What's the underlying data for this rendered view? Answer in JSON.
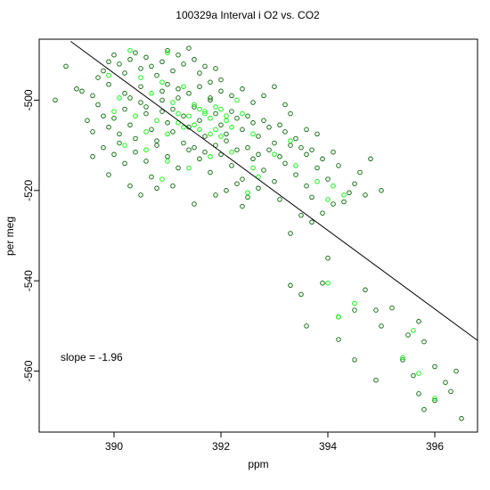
{
  "chart_data": {
    "type": "scatter",
    "title": "100329a   Interval i O2 vs. CO2",
    "xlabel": "ppm",
    "ylabel": "per meg",
    "xlim": [
      388.6,
      396.8
    ],
    "ylim": [
      -573.5,
      -486.5
    ],
    "x_ticks": [
      390,
      392,
      394,
      396
    ],
    "y_ticks": [
      -500,
      -520,
      -540,
      -560
    ],
    "x_tick_labels": [
      "390",
      "392",
      "394",
      "396"
    ],
    "y_tick_labels": [
      "-500",
      "-520",
      "-540",
      "-560"
    ],
    "grid": false,
    "legend": "none",
    "annotation": "slope =  -1.96",
    "fit_line": {
      "slope": -1.96,
      "points": [
        [
          389.19,
          -487.0
        ],
        [
          396.8,
          -553.2
        ]
      ]
    },
    "colors": {
      "series_dark": "#006400",
      "series_bright": "#00ee00",
      "fit_line": "#000000"
    },
    "series": [
      {
        "marker": "open-circle",
        "color": "#006400",
        "points": [
          [
            389.1,
            -492.5
          ],
          [
            388.9,
            -500.0
          ],
          [
            389.3,
            -497.5
          ],
          [
            389.4,
            -498.0
          ],
          [
            389.6,
            -499.0
          ],
          [
            389.7,
            -495.0
          ],
          [
            389.8,
            -493.5
          ],
          [
            389.9,
            -491.5
          ],
          [
            390.0,
            -490.0
          ],
          [
            390.1,
            -492.0
          ],
          [
            389.9,
            -496.5
          ],
          [
            390.2,
            -494.0
          ],
          [
            390.3,
            -491.0
          ],
          [
            390.4,
            -489.5
          ],
          [
            390.5,
            -493.0
          ],
          [
            390.6,
            -490.5
          ],
          [
            390.7,
            -492.5
          ],
          [
            390.8,
            -494.5
          ],
          [
            390.9,
            -491.5
          ],
          [
            391.0,
            -489.0
          ],
          [
            391.1,
            -493.5
          ],
          [
            391.2,
            -490.0
          ],
          [
            391.3,
            -492.0
          ],
          [
            391.4,
            -488.5
          ],
          [
            391.5,
            -491.0
          ],
          [
            391.6,
            -494.0
          ],
          [
            391.7,
            -492.5
          ],
          [
            391.8,
            -496.0
          ],
          [
            391.9,
            -493.0
          ],
          [
            392.0,
            -495.5
          ],
          [
            389.7,
            -501.0
          ],
          [
            389.8,
            -503.5
          ],
          [
            389.9,
            -506.0
          ],
          [
            390.0,
            -504.0
          ],
          [
            390.1,
            -507.5
          ],
          [
            390.2,
            -502.0
          ],
          [
            390.3,
            -505.5
          ],
          [
            390.4,
            -508.5
          ],
          [
            390.5,
            -500.5
          ],
          [
            390.6,
            -503.0
          ],
          [
            390.7,
            -506.5
          ],
          [
            390.8,
            -509.0
          ],
          [
            390.9,
            -502.5
          ],
          [
            391.0,
            -505.0
          ],
          [
            391.1,
            -507.0
          ],
          [
            391.2,
            -499.5
          ],
          [
            391.3,
            -503.5
          ],
          [
            391.4,
            -506.0
          ],
          [
            391.5,
            -501.5
          ],
          [
            391.6,
            -504.5
          ],
          [
            391.7,
            -508.0
          ],
          [
            391.8,
            -500.0
          ],
          [
            391.9,
            -503.0
          ],
          [
            392.0,
            -505.5
          ],
          [
            392.1,
            -507.5
          ],
          [
            392.2,
            -502.5
          ],
          [
            392.3,
            -504.0
          ],
          [
            392.4,
            -506.5
          ],
          [
            392.5,
            -503.5
          ],
          [
            392.6,
            -505.0
          ],
          [
            392.7,
            -508.0
          ],
          [
            392.8,
            -504.5
          ],
          [
            392.9,
            -506.0
          ],
          [
            393.0,
            -509.5
          ],
          [
            393.1,
            -505.5
          ],
          [
            393.2,
            -507.0
          ],
          [
            393.3,
            -503.0
          ],
          [
            393.4,
            -508.5
          ],
          [
            393.5,
            -510.5
          ],
          [
            393.6,
            -506.5
          ],
          [
            393.7,
            -511.0
          ],
          [
            393.8,
            -507.5
          ],
          [
            389.8,
            -510.5
          ],
          [
            390.0,
            -512.0
          ],
          [
            390.2,
            -514.0
          ],
          [
            390.4,
            -511.5
          ],
          [
            390.6,
            -513.5
          ],
          [
            390.8,
            -510.0
          ],
          [
            391.0,
            -512.5
          ],
          [
            391.2,
            -515.0
          ],
          [
            391.4,
            -511.0
          ],
          [
            391.6,
            -513.0
          ],
          [
            391.8,
            -516.0
          ],
          [
            392.0,
            -512.0
          ],
          [
            392.2,
            -514.5
          ],
          [
            392.4,
            -517.5
          ],
          [
            392.6,
            -513.0
          ],
          [
            392.8,
            -515.5
          ],
          [
            393.0,
            -518.0
          ],
          [
            393.2,
            -514.0
          ],
          [
            393.4,
            -516.5
          ],
          [
            393.6,
            -519.0
          ],
          [
            393.8,
            -515.0
          ],
          [
            394.0,
            -517.5
          ],
          [
            394.2,
            -514.5
          ],
          [
            394.4,
            -520.5
          ],
          [
            394.6,
            -516.0
          ],
          [
            394.8,
            -513.0
          ],
          [
            395.0,
            -520.0
          ],
          [
            389.9,
            -516.5
          ],
          [
            390.3,
            -519.0
          ],
          [
            390.7,
            -517.0
          ],
          [
            391.5,
            -523.0
          ],
          [
            392.1,
            -520.0
          ],
          [
            392.5,
            -521.5
          ],
          [
            393.1,
            -522.0
          ],
          [
            393.5,
            -525.5
          ],
          [
            393.7,
            -527.0
          ],
          [
            394.1,
            -523.0
          ],
          [
            394.3,
            -522.5
          ],
          [
            393.3,
            -529.5
          ],
          [
            394.0,
            -535.0
          ],
          [
            393.9,
            -540.5
          ],
          [
            393.3,
            -541.0
          ],
          [
            393.5,
            -543.0
          ],
          [
            393.6,
            -550.0
          ],
          [
            394.2,
            -548.0
          ],
          [
            394.5,
            -546.5
          ],
          [
            394.7,
            -542.0
          ],
          [
            394.9,
            -546.5
          ],
          [
            395.0,
            -550.0
          ],
          [
            395.2,
            -546.0
          ],
          [
            395.5,
            -552.0
          ],
          [
            395.7,
            -549.0
          ],
          [
            395.8,
            -553.5
          ],
          [
            394.2,
            -553.0
          ],
          [
            394.5,
            -557.5
          ],
          [
            395.4,
            -557.5
          ],
          [
            395.6,
            -561.0
          ],
          [
            395.7,
            -565.0
          ],
          [
            395.8,
            -568.5
          ],
          [
            396.0,
            -559.0
          ],
          [
            396.2,
            -562.5
          ],
          [
            396.3,
            -564.5
          ],
          [
            396.4,
            -560.0
          ],
          [
            396.0,
            -566.5
          ],
          [
            396.5,
            -570.5
          ],
          [
            394.9,
            -562.0
          ],
          [
            391.0,
            -496.5
          ],
          [
            391.2,
            -497.5
          ],
          [
            391.4,
            -498.5
          ],
          [
            391.6,
            -497.0
          ],
          [
            391.8,
            -499.5
          ],
          [
            392.0,
            -498.0
          ],
          [
            392.2,
            -499.0
          ],
          [
            392.4,
            -497.5
          ],
          [
            392.6,
            -500.5
          ],
          [
            392.8,
            -499.0
          ],
          [
            393.0,
            -497.0
          ],
          [
            393.2,
            -501.0
          ],
          [
            390.5,
            -497.0
          ],
          [
            390.9,
            -498.0
          ],
          [
            390.2,
            -498.5
          ],
          [
            389.5,
            -504.5
          ],
          [
            389.6,
            -507.0
          ],
          [
            390.1,
            -509.5
          ],
          [
            392.9,
            -511.0
          ],
          [
            393.1,
            -512.5
          ],
          [
            393.3,
            -510.0
          ],
          [
            393.6,
            -512.0
          ],
          [
            393.9,
            -513.0
          ],
          [
            394.1,
            -511.5
          ],
          [
            391.1,
            -519.0
          ],
          [
            390.5,
            -521.0
          ],
          [
            392.3,
            -518.5
          ],
          [
            392.7,
            -519.5
          ],
          [
            391.9,
            -521.0
          ],
          [
            393.9,
            -525.0
          ],
          [
            391.3,
            -509.5
          ],
          [
            391.5,
            -510.5
          ],
          [
            391.7,
            -511.5
          ],
          [
            391.9,
            -510.0
          ],
          [
            392.1,
            -509.0
          ],
          [
            392.3,
            -511.0
          ],
          [
            392.5,
            -510.5
          ],
          [
            392.7,
            -512.0
          ],
          [
            390.3,
            -499.5
          ],
          [
            390.6,
            -501.5
          ],
          [
            390.9,
            -500.0
          ],
          [
            391.1,
            -502.0
          ],
          [
            389.6,
            -512.5
          ],
          [
            394.5,
            -518.5
          ],
          [
            394.7,
            -521.0
          ],
          [
            393.7,
            -521.5
          ],
          [
            392.4,
            -523.5
          ],
          [
            390.8,
            -519.5
          ]
        ]
      },
      {
        "marker": "open-circle",
        "color": "#00ee00",
        "points": [
          [
            389.9,
            -494.5
          ],
          [
            390.1,
            -499.5
          ],
          [
            390.5,
            -495.0
          ],
          [
            390.7,
            -498.5
          ],
          [
            390.9,
            -496.0
          ],
          [
            391.1,
            -500.5
          ],
          [
            391.3,
            -497.0
          ],
          [
            391.5,
            -501.0
          ],
          [
            391.7,
            -503.0
          ],
          [
            391.9,
            -501.5
          ],
          [
            392.1,
            -503.5
          ],
          [
            392.3,
            -500.0
          ],
          [
            390.4,
            -503.5
          ],
          [
            390.6,
            -507.0
          ],
          [
            390.8,
            -504.5
          ],
          [
            391.0,
            -507.5
          ],
          [
            391.2,
            -505.0
          ],
          [
            391.4,
            -503.5
          ],
          [
            391.6,
            -506.5
          ],
          [
            391.8,
            -504.0
          ],
          [
            392.0,
            -502.0
          ],
          [
            392.2,
            -506.0
          ],
          [
            392.4,
            -503.0
          ],
          [
            392.6,
            -507.5
          ],
          [
            390.2,
            -510.0
          ],
          [
            390.6,
            -511.0
          ],
          [
            391.0,
            -513.5
          ],
          [
            391.4,
            -515.0
          ],
          [
            391.8,
            -512.5
          ],
          [
            392.2,
            -511.5
          ],
          [
            392.6,
            -515.0
          ],
          [
            393.0,
            -512.0
          ],
          [
            393.4,
            -514.5
          ],
          [
            393.8,
            -518.0
          ],
          [
            394.1,
            -519.0
          ],
          [
            394.3,
            -521.0
          ],
          [
            392.5,
            -520.5
          ],
          [
            392.7,
            -517.0
          ],
          [
            390.9,
            -517.5
          ],
          [
            391.2,
            -503.0
          ],
          [
            391.5,
            -505.5
          ],
          [
            391.7,
            -502.5
          ],
          [
            391.9,
            -506.5
          ],
          [
            392.1,
            -504.5
          ],
          [
            391.3,
            -506.0
          ],
          [
            391.6,
            -502.0
          ],
          [
            391.8,
            -507.5
          ],
          [
            392.0,
            -508.0
          ],
          [
            394.0,
            -540.5
          ],
          [
            394.2,
            -548.0
          ],
          [
            394.5,
            -545.0
          ],
          [
            395.4,
            -557.0
          ],
          [
            395.6,
            -551.0
          ],
          [
            395.7,
            -560.5
          ],
          [
            396.0,
            -566.0
          ],
          [
            394.0,
            -522.0
          ],
          [
            393.3,
            -509.0
          ],
          [
            390.0,
            -502.5
          ],
          [
            390.3,
            -489.0
          ],
          [
            391.0,
            -489.5
          ]
        ]
      }
    ]
  }
}
